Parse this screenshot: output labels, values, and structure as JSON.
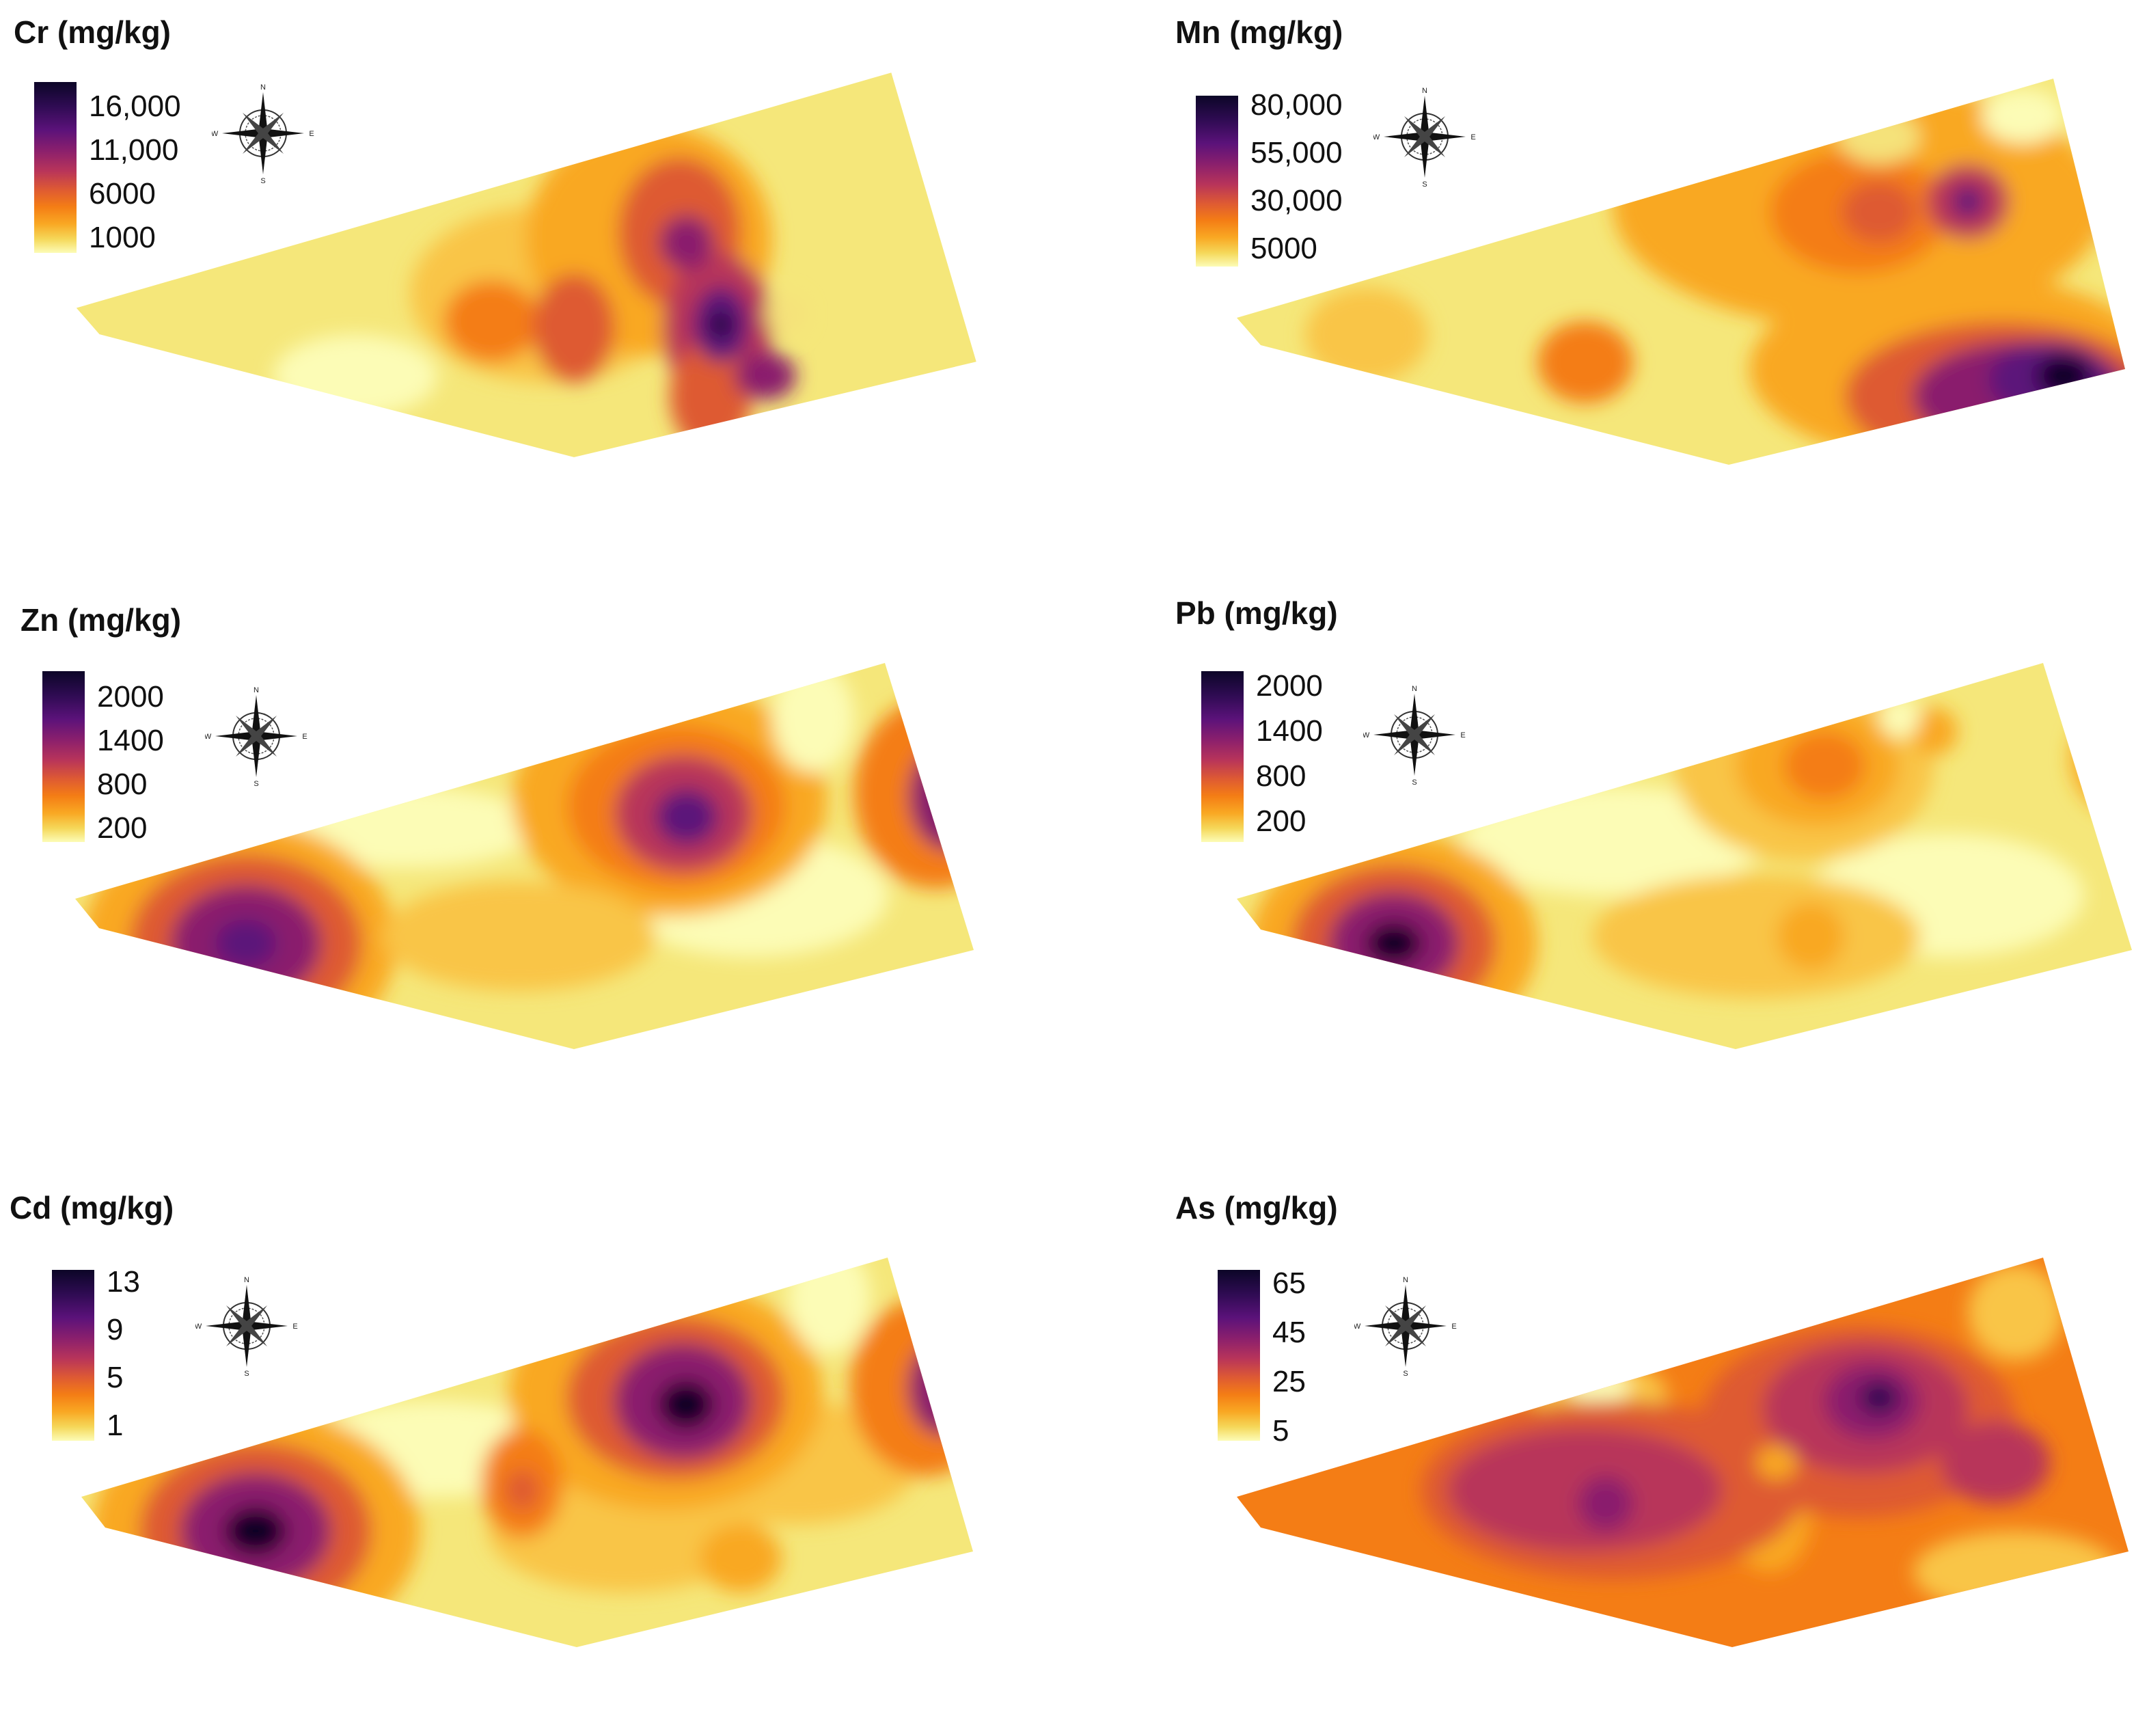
{
  "panels": [
    {
      "id": "cr",
      "title": "Cr (mg/kg)",
      "legend": [
        "16,000",
        "11,000",
        "6000",
        "1000"
      ],
      "compass": {
        "n": "N",
        "s": "S",
        "e": "E",
        "w": "W"
      }
    },
    {
      "id": "mn",
      "title": "Mn (mg/kg)",
      "legend": [
        "80,000",
        "55,000",
        "30,000",
        "5000"
      ],
      "compass": {
        "n": "N",
        "s": "S",
        "e": "E",
        "w": "W"
      }
    },
    {
      "id": "zn",
      "title": "Zn (mg/kg)",
      "legend": [
        "2000",
        "1400",
        "800",
        "200"
      ],
      "compass": {
        "n": "N",
        "s": "S",
        "e": "E",
        "w": "W"
      }
    },
    {
      "id": "pb",
      "title": "Pb (mg/kg)",
      "legend": [
        "2000",
        "1400",
        "800",
        "200"
      ],
      "compass": {
        "n": "N",
        "s": "S",
        "e": "E",
        "w": "W"
      }
    },
    {
      "id": "cd",
      "title": "Cd (mg/kg)",
      "legend": [
        "13",
        "9",
        "5",
        "1"
      ],
      "compass": {
        "n": "N",
        "s": "S",
        "e": "E",
        "w": "W"
      }
    },
    {
      "id": "as",
      "title": "As (mg/kg)",
      "legend": [
        "65",
        "45",
        "25",
        "5"
      ],
      "compass": {
        "n": "N",
        "s": "S",
        "e": "E",
        "w": "W"
      }
    }
  ],
  "colors": {
    "ramp": [
      "#fcfcb6",
      "#f5e27a",
      "#f9c546",
      "#f9a823",
      "#f47d15",
      "#de5a33",
      "#b8345a",
      "#8a1f6d",
      "#5b127a",
      "#2e0b52",
      "#0c0627"
    ],
    "outline": "#222222"
  }
}
